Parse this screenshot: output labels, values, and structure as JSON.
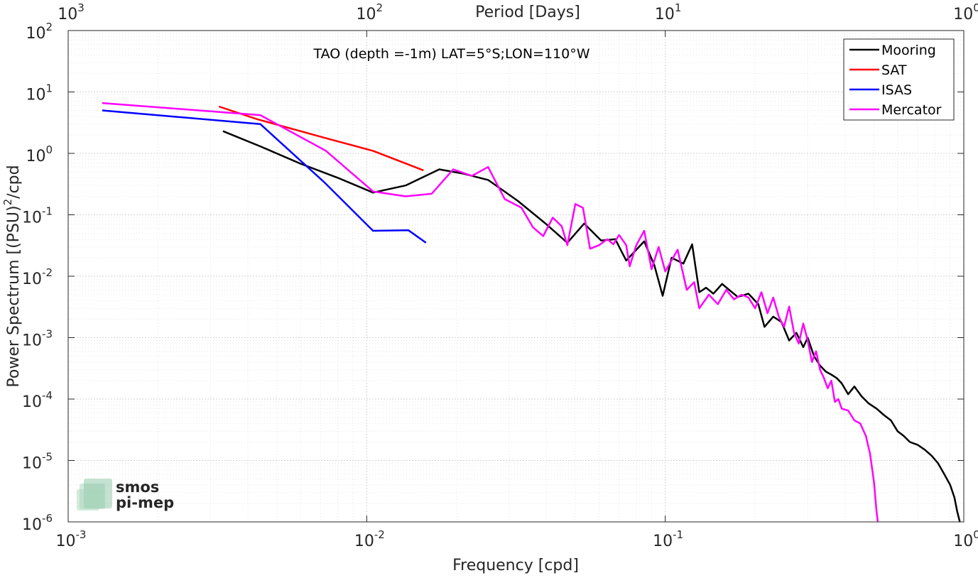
{
  "chart_data": {
    "type": "line",
    "title": "TAO (depth =-1m) LAT=5°S;LON=110°W",
    "xlabel": "Frequency [cpd]",
    "ylabel": "Power Spectrum [(PSU)",
    "ylabel_sup": "2",
    "ylabel_suffix": "/cpd",
    "top_xlabel": "Period [Days]",
    "x_scale": "log",
    "y_scale": "log",
    "xlim": [
      0.001,
      1
    ],
    "ylim": [
      1e-06,
      100
    ],
    "grid": true,
    "legend_position": "top-right",
    "x_ticks": [
      {
        "base": "10",
        "exp": "-3"
      },
      {
        "base": "10",
        "exp": "-2"
      },
      {
        "base": "10",
        "exp": "-1"
      },
      {
        "base": "10",
        "exp": "0"
      }
    ],
    "y_ticks": [
      {
        "base": "10",
        "exp": "-6"
      },
      {
        "base": "10",
        "exp": "-5"
      },
      {
        "base": "10",
        "exp": "-4"
      },
      {
        "base": "10",
        "exp": "-3"
      },
      {
        "base": "10",
        "exp": "-2"
      },
      {
        "base": "10",
        "exp": "-1"
      },
      {
        "base": "10",
        "exp": "0"
      },
      {
        "base": "10",
        "exp": "1"
      },
      {
        "base": "10",
        "exp": "2"
      }
    ],
    "top_ticks": [
      {
        "base": "10",
        "exp": "3"
      },
      {
        "base": "10",
        "exp": "2"
      },
      {
        "base": "10",
        "exp": "1"
      },
      {
        "base": "10",
        "exp": "0"
      }
    ],
    "series": [
      {
        "name": "Mooring",
        "color": "#000000",
        "points": [
          [
            0.0033,
            2.3
          ],
          [
            0.0044,
            1.3
          ],
          [
            0.006,
            0.68
          ],
          [
            0.008,
            0.4
          ],
          [
            0.0105,
            0.23
          ],
          [
            0.0135,
            0.3
          ],
          [
            0.0175,
            0.55
          ],
          [
            0.021,
            0.47
          ],
          [
            0.0255,
            0.37
          ],
          [
            0.032,
            0.17
          ],
          [
            0.04,
            0.07
          ],
          [
            0.047,
            0.035
          ],
          [
            0.0535,
            0.072
          ],
          [
            0.061,
            0.038
          ],
          [
            0.068,
            0.04
          ],
          [
            0.074,
            0.018
          ],
          [
            0.085,
            0.037
          ],
          [
            0.092,
            0.015
          ],
          [
            0.098,
            0.0048
          ],
          [
            0.105,
            0.02
          ],
          [
            0.115,
            0.016
          ],
          [
            0.123,
            0.033
          ],
          [
            0.13,
            0.0055
          ],
          [
            0.137,
            0.0065
          ],
          [
            0.145,
            0.0052
          ],
          [
            0.155,
            0.0075
          ],
          [
            0.165,
            0.0058
          ],
          [
            0.175,
            0.0046
          ],
          [
            0.19,
            0.0052
          ],
          [
            0.205,
            0.0035
          ],
          [
            0.215,
            0.0015
          ],
          [
            0.23,
            0.0022
          ],
          [
            0.245,
            0.0018
          ],
          [
            0.26,
            0.0009
          ],
          [
            0.275,
            0.0012
          ],
          [
            0.29,
            0.0007
          ],
          [
            0.3,
            0.001
          ],
          [
            0.315,
            0.0005
          ],
          [
            0.33,
            0.00035
          ],
          [
            0.345,
            0.00028
          ],
          [
            0.36,
            0.00025
          ],
          [
            0.375,
            0.00022
          ],
          [
            0.39,
            0.00018
          ],
          [
            0.41,
            0.00012
          ],
          [
            0.43,
            0.00016
          ],
          [
            0.455,
            0.00011
          ],
          [
            0.48,
            8.5e-05
          ],
          [
            0.51,
            7e-05
          ],
          [
            0.54,
            5.5e-05
          ],
          [
            0.57,
            4.5e-05
          ],
          [
            0.6,
            3e-05
          ],
          [
            0.63,
            2.5e-05
          ],
          [
            0.66,
            2e-05
          ],
          [
            0.7,
            1.8e-05
          ],
          [
            0.74,
            1.5e-05
          ],
          [
            0.78,
            1.2e-05
          ],
          [
            0.82,
            9e-06
          ],
          [
            0.86,
            6e-06
          ],
          [
            0.9,
            4e-06
          ],
          [
            0.93,
            2.5e-06
          ],
          [
            0.95,
            1.5e-06
          ],
          [
            0.97,
            1e-06
          ]
        ]
      },
      {
        "name": "SAT",
        "color": "#ff0000",
        "points": [
          [
            0.0032,
            5.8
          ],
          [
            0.0043,
            3.6
          ],
          [
            0.0072,
            1.8
          ],
          [
            0.0105,
            1.1
          ],
          [
            0.0155,
            0.53
          ]
        ]
      },
      {
        "name": "ISAS",
        "color": "#0000ff",
        "points": [
          [
            0.0013,
            5.0
          ],
          [
            0.0044,
            3.0
          ],
          [
            0.0072,
            0.34
          ],
          [
            0.0105,
            0.055
          ],
          [
            0.0138,
            0.056
          ],
          [
            0.0158,
            0.035
          ]
        ]
      },
      {
        "name": "Mercator",
        "color": "#ff00ff",
        "points": [
          [
            0.0013,
            6.6
          ],
          [
            0.0044,
            4.2
          ],
          [
            0.0073,
            1.1
          ],
          [
            0.0105,
            0.24
          ],
          [
            0.0135,
            0.2
          ],
          [
            0.0165,
            0.22
          ],
          [
            0.0195,
            0.55
          ],
          [
            0.0225,
            0.43
          ],
          [
            0.0255,
            0.6
          ],
          [
            0.029,
            0.18
          ],
          [
            0.033,
            0.13
          ],
          [
            0.036,
            0.063
          ],
          [
            0.039,
            0.045
          ],
          [
            0.042,
            0.09
          ],
          [
            0.045,
            0.065
          ],
          [
            0.047,
            0.032
          ],
          [
            0.05,
            0.15
          ],
          [
            0.053,
            0.13
          ],
          [
            0.056,
            0.028
          ],
          [
            0.06,
            0.032
          ],
          [
            0.064,
            0.04
          ],
          [
            0.067,
            0.033
          ],
          [
            0.07,
            0.047
          ],
          [
            0.074,
            0.032
          ],
          [
            0.076,
            0.0145
          ],
          [
            0.08,
            0.032
          ],
          [
            0.085,
            0.055
          ],
          [
            0.09,
            0.013
          ],
          [
            0.095,
            0.03
          ],
          [
            0.1,
            0.012
          ],
          [
            0.11,
            0.027
          ],
          [
            0.118,
            0.006
          ],
          [
            0.125,
            0.008
          ],
          [
            0.13,
            0.003
          ],
          [
            0.14,
            0.005
          ],
          [
            0.15,
            0.0035
          ],
          [
            0.16,
            0.006
          ],
          [
            0.17,
            0.0042
          ],
          [
            0.18,
            0.005
          ],
          [
            0.19,
            0.0045
          ],
          [
            0.2,
            0.003
          ],
          [
            0.21,
            0.0055
          ],
          [
            0.22,
            0.0025
          ],
          [
            0.23,
            0.0045
          ],
          [
            0.24,
            0.0022
          ],
          [
            0.25,
            0.0015
          ],
          [
            0.26,
            0.0032
          ],
          [
            0.27,
            0.0012
          ],
          [
            0.28,
            0.0008
          ],
          [
            0.29,
            0.0017
          ],
          [
            0.3,
            0.0009
          ],
          [
            0.31,
            0.0004
          ],
          [
            0.32,
            0.0006
          ],
          [
            0.33,
            0.0003
          ],
          [
            0.34,
            0.00022
          ],
          [
            0.35,
            0.00015
          ],
          [
            0.36,
            0.0002
          ],
          [
            0.37,
            9e-05
          ],
          [
            0.38,
            0.0001
          ],
          [
            0.39,
            7e-05
          ],
          [
            0.41,
            6.5e-05
          ],
          [
            0.43,
            4.5e-05
          ],
          [
            0.45,
            4e-05
          ],
          [
            0.47,
            2.5e-05
          ],
          [
            0.485,
            1.3e-05
          ],
          [
            0.5,
            4.5e-06
          ],
          [
            0.51,
            1.5e-06
          ],
          [
            0.515,
            1e-06
          ]
        ]
      }
    ]
  },
  "logo": {
    "line1": "smos",
    "line2": "pi-mep",
    "color": "#7fbf9a"
  }
}
